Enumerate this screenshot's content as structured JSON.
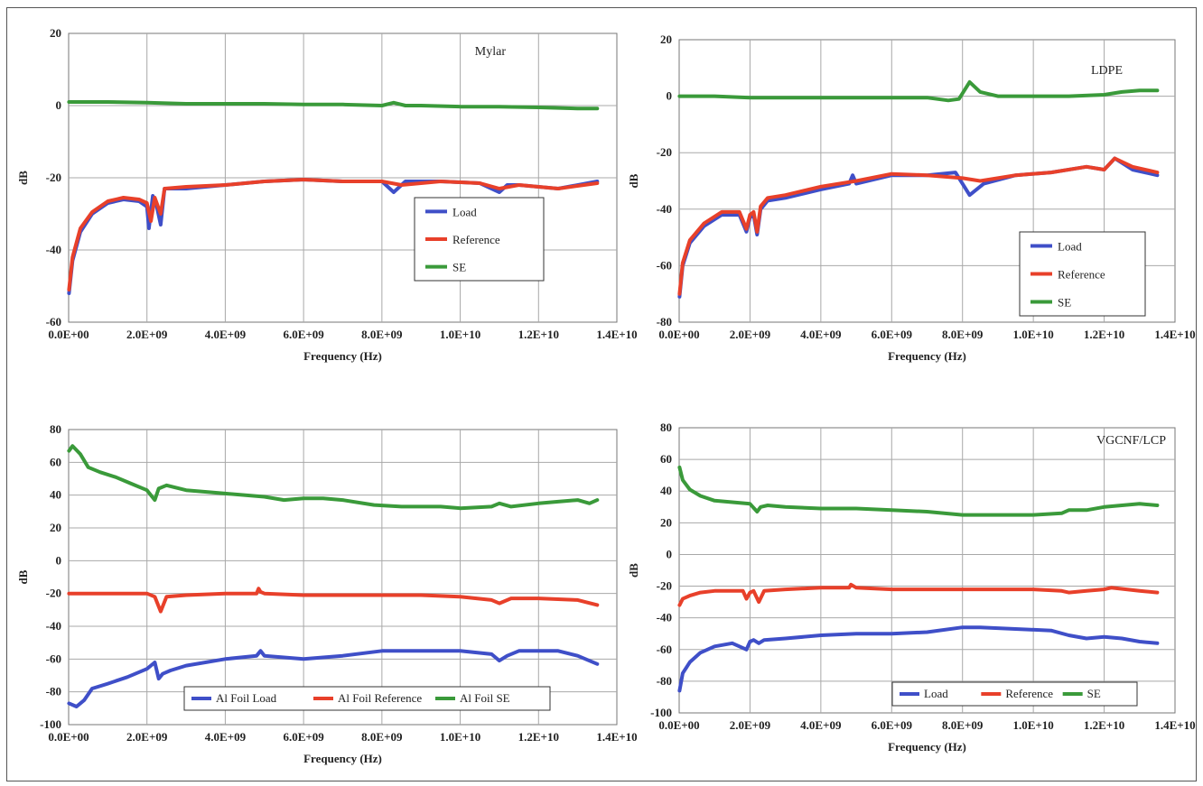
{
  "chart_data": [
    {
      "type": "line",
      "title": "Mylar",
      "xlabel": "Frequency (Hz)",
      "ylabel": "dB",
      "xlim": [
        0,
        14000000000
      ],
      "ylim": [
        -60,
        20
      ],
      "x_ticks": [
        "0.0E+00",
        "2.0E+09",
        "4.0E+09",
        "6.0E+09",
        "8.0E+09",
        "1.0E+10",
        "1.2E+10",
        "1.4E+10"
      ],
      "y_ticks": [
        "20",
        "0",
        "-20",
        "-40",
        "-60"
      ],
      "grid": true,
      "legend_position": "right-middle",
      "legend_layout": "vertical",
      "series": [
        {
          "name": "Load",
          "color": "#3f4fc8",
          "x": [
            0.01,
            0.1,
            0.3,
            0.6,
            1.0,
            1.4,
            1.8,
            2.0,
            2.05,
            2.15,
            2.25,
            2.35,
            2.45,
            3.0,
            4.0,
            5.0,
            6.0,
            7.0,
            8.0,
            8.3,
            8.6,
            9.5,
            10.5,
            11.0,
            11.2,
            11.5,
            12.5,
            13.5
          ],
          "y": [
            -52,
            -43,
            -35,
            -30,
            -27,
            -26,
            -26.5,
            -28,
            -34,
            -25,
            -28,
            -33,
            -23,
            -23,
            -22,
            -21,
            -20.5,
            -21,
            -21,
            -24,
            -21,
            -21,
            -21.5,
            -24,
            -22,
            -22,
            -23,
            -21
          ]
        },
        {
          "name": "Reference",
          "color": "#e8402a",
          "x": [
            0.01,
            0.1,
            0.3,
            0.6,
            1.0,
            1.4,
            1.8,
            2.0,
            2.1,
            2.2,
            2.35,
            2.45,
            3.0,
            4.0,
            5.0,
            6.0,
            7.0,
            8.0,
            8.5,
            9.5,
            10.5,
            11.0,
            11.5,
            12.5,
            13.5
          ],
          "y": [
            -51,
            -42,
            -34,
            -29.5,
            -26.5,
            -25.5,
            -26,
            -27,
            -32,
            -25.5,
            -30,
            -23,
            -22.5,
            -22,
            -21,
            -20.5,
            -21,
            -21,
            -22,
            -21,
            -21.5,
            -23,
            -22,
            -23,
            -21.5
          ]
        },
        {
          "name": "SE",
          "color": "#3a9a3a",
          "x": [
            0.01,
            1.0,
            2.0,
            3.0,
            4.0,
            5.0,
            6.0,
            7.0,
            8.0,
            8.3,
            8.6,
            9.0,
            10.0,
            11.0,
            12.0,
            13.0,
            13.5
          ],
          "y": [
            1,
            1,
            0.8,
            0.5,
            0.5,
            0.5,
            0.3,
            0.3,
            0,
            0.8,
            0,
            0,
            -0.3,
            -0.3,
            -0.5,
            -0.8,
            -0.8
          ]
        }
      ]
    },
    {
      "type": "line",
      "title": "LDPE",
      "xlabel": "Frequency (Hz)",
      "ylabel": "dB",
      "xlim": [
        0,
        14000000000
      ],
      "ylim": [
        -80,
        20
      ],
      "x_ticks": [
        "0.0E+00",
        "2.0E+09",
        "4.0E+09",
        "6.0E+09",
        "8.0E+09",
        "1.0E+10",
        "1.2E+10",
        "1.4E+10"
      ],
      "y_ticks": [
        "20",
        "0",
        "-20",
        "-40",
        "-60",
        "-80"
      ],
      "grid": true,
      "legend_position": "bottom-right",
      "legend_layout": "vertical",
      "series": [
        {
          "name": "Load",
          "color": "#3f4fc8",
          "x": [
            0.01,
            0.1,
            0.3,
            0.7,
            1.2,
            1.7,
            1.9,
            2.0,
            2.1,
            2.2,
            2.3,
            2.5,
            3.0,
            4.0,
            4.8,
            4.9,
            5.0,
            6.0,
            7.0,
            7.8,
            8.2,
            8.6,
            9.5,
            10.5,
            11.5,
            12.0,
            12.3,
            12.8,
            13.5
          ],
          "y": [
            -71,
            -60,
            -52,
            -46,
            -42,
            -42,
            -48,
            -43,
            -42,
            -49,
            -40,
            -37,
            -36,
            -33,
            -31,
            -28,
            -31,
            -28,
            -28,
            -27,
            -35,
            -31,
            -28,
            -27,
            -25,
            -26,
            -22,
            -26,
            -28
          ]
        },
        {
          "name": "Reference",
          "color": "#e8402a",
          "x": [
            0.01,
            0.1,
            0.3,
            0.7,
            1.2,
            1.7,
            1.9,
            2.0,
            2.1,
            2.2,
            2.3,
            2.5,
            3.0,
            4.0,
            5.0,
            6.0,
            7.0,
            8.0,
            8.5,
            9.5,
            10.5,
            11.5,
            12.0,
            12.3,
            12.8,
            13.5
          ],
          "y": [
            -70,
            -59,
            -51,
            -45,
            -41,
            -41,
            -47,
            -42,
            -41,
            -48,
            -39,
            -36,
            -35,
            -32,
            -30,
            -27.5,
            -28,
            -29,
            -30,
            -28,
            -27,
            -25,
            -26,
            -22,
            -25,
            -27
          ]
        },
        {
          "name": "SE",
          "color": "#3a9a3a",
          "x": [
            0.01,
            1.0,
            2.0,
            3.0,
            4.0,
            5.0,
            6.0,
            7.0,
            7.6,
            7.9,
            8.2,
            8.5,
            9.0,
            10.0,
            11.0,
            12.0,
            12.5,
            13.0,
            13.5
          ],
          "y": [
            0,
            0,
            -0.5,
            -0.5,
            -0.5,
            -0.5,
            -0.5,
            -0.5,
            -1.5,
            -1,
            5,
            1.5,
            0,
            0,
            0,
            0.5,
            1.5,
            2,
            2
          ]
        }
      ]
    },
    {
      "type": "line",
      "title": "",
      "xlabel": "Frequency (Hz)",
      "ylabel": "dB",
      "xlim": [
        0,
        14000000000
      ],
      "ylim": [
        -100,
        80
      ],
      "x_ticks": [
        "0.0E+00",
        "2.0E+09",
        "4.0E+09",
        "6.0E+09",
        "8.0E+09",
        "1.0E+10",
        "1.2E+10",
        "1.4E+10"
      ],
      "y_ticks": [
        "80",
        "60",
        "40",
        "20",
        "0",
        "-20",
        "-40",
        "-60",
        "-80",
        "-100"
      ],
      "grid": true,
      "legend_position": "bottom",
      "legend_layout": "horizontal",
      "series": [
        {
          "name": "Al Foil Load",
          "color": "#3f4fc8",
          "x": [
            0.01,
            0.2,
            0.4,
            0.6,
            1.0,
            1.5,
            2.0,
            2.2,
            2.3,
            2.4,
            2.6,
            3.0,
            4.0,
            4.8,
            4.9,
            5.0,
            6.0,
            7.0,
            8.0,
            9.0,
            10.0,
            10.8,
            11.0,
            11.2,
            11.5,
            12.5,
            13.0,
            13.5
          ],
          "y": [
            -87,
            -89,
            -85,
            -78,
            -75,
            -71,
            -66,
            -62,
            -72,
            -69,
            -67,
            -64,
            -60,
            -58,
            -55,
            -58,
            -60,
            -58,
            -55,
            -55,
            -55,
            -57,
            -61,
            -58,
            -55,
            -55,
            -58,
            -63
          ]
        },
        {
          "name": "Al Foil Reference",
          "color": "#e8402a",
          "x": [
            0.01,
            1.0,
            2.0,
            2.2,
            2.35,
            2.5,
            3.0,
            4.0,
            4.8,
            4.85,
            4.9,
            5.0,
            6.0,
            8.0,
            9.0,
            10.0,
            10.8,
            11.0,
            11.3,
            12.0,
            13.0,
            13.5
          ],
          "y": [
            -20,
            -20,
            -20,
            -22,
            -31,
            -22,
            -21,
            -20,
            -20,
            -17,
            -19,
            -20,
            -21,
            -21,
            -21,
            -22,
            -24,
            -26,
            -23,
            -23,
            -24,
            -27
          ]
        },
        {
          "name": "Al Foil SE",
          "color": "#3a9a3a",
          "x": [
            0.01,
            0.1,
            0.3,
            0.5,
            0.8,
            1.2,
            1.6,
            2.0,
            2.2,
            2.3,
            2.5,
            3.0,
            4.0,
            5.0,
            5.5,
            6.0,
            6.5,
            7.0,
            7.8,
            8.5,
            9.5,
            10.0,
            10.8,
            11.0,
            11.3,
            12.0,
            12.5,
            13.0,
            13.3,
            13.5
          ],
          "y": [
            67,
            70,
            65,
            57,
            54,
            51,
            47,
            43,
            37,
            44,
            46,
            43,
            41,
            39,
            37,
            38,
            38,
            37,
            34,
            33,
            33,
            32,
            33,
            35,
            33,
            35,
            36,
            37,
            35,
            37
          ]
        }
      ]
    },
    {
      "type": "line",
      "title": "VGCNF/LCP",
      "xlabel": "Frequency (Hz)",
      "ylabel": "dB",
      "xlim": [
        0,
        14000000000
      ],
      "ylim": [
        -100,
        80
      ],
      "x_ticks": [
        "0.0E+00",
        "2.0E+09",
        "4.0E+09",
        "6.0E+09",
        "8.0E+09",
        "1.0E+10",
        "1.2E+10",
        "1.4E+10"
      ],
      "y_ticks": [
        "80",
        "60",
        "40",
        "20",
        "0",
        "-20",
        "-40",
        "-60",
        "-80",
        "-100"
      ],
      "grid": true,
      "legend_position": "bottom",
      "legend_layout": "horizontal",
      "series": [
        {
          "name": "Load",
          "color": "#3f4fc8",
          "x": [
            0.01,
            0.1,
            0.3,
            0.6,
            1.0,
            1.5,
            1.9,
            2.0,
            2.1,
            2.25,
            2.4,
            3.0,
            4.0,
            5.0,
            6.0,
            7.0,
            8.0,
            8.5,
            9.5,
            10.5,
            11.0,
            11.5,
            12.0,
            12.5,
            13.0,
            13.5
          ],
          "y": [
            -86,
            -75,
            -68,
            -62,
            -58,
            -56,
            -60,
            -55,
            -54,
            -56,
            -54,
            -53,
            -51,
            -50,
            -50,
            -49,
            -46,
            -46,
            -47,
            -48,
            -51,
            -53,
            -52,
            -53,
            -55,
            -56
          ]
        },
        {
          "name": "Reference",
          "color": "#e8402a",
          "x": [
            0.01,
            0.1,
            0.3,
            0.6,
            1.0,
            1.5,
            1.8,
            1.9,
            2.0,
            2.1,
            2.25,
            2.4,
            3.0,
            4.0,
            4.8,
            4.85,
            5.0,
            6.0,
            8.0,
            9.0,
            10.0,
            10.8,
            11.0,
            11.5,
            12.0,
            12.2,
            13.0,
            13.5
          ],
          "y": [
            -32,
            -28,
            -26,
            -24,
            -23,
            -23,
            -23,
            -28,
            -24,
            -23,
            -30,
            -23,
            -22,
            -21,
            -21,
            -19,
            -21,
            -22,
            -22,
            -22,
            -22,
            -23,
            -24,
            -23,
            -22,
            -21,
            -23,
            -24
          ]
        },
        {
          "name": "SE",
          "color": "#3a9a3a",
          "x": [
            0.01,
            0.1,
            0.3,
            0.6,
            1.0,
            1.5,
            2.0,
            2.2,
            2.3,
            2.5,
            3.0,
            4.0,
            5.0,
            6.0,
            7.0,
            8.0,
            9.0,
            10.0,
            10.8,
            11.0,
            11.5,
            12.0,
            12.5,
            13.0,
            13.5
          ],
          "y": [
            55,
            47,
            41,
            37,
            34,
            33,
            32,
            27,
            30,
            31,
            30,
            29,
            29,
            28,
            27,
            25,
            25,
            25,
            26,
            28,
            28,
            30,
            31,
            32,
            31
          ]
        }
      ]
    }
  ]
}
